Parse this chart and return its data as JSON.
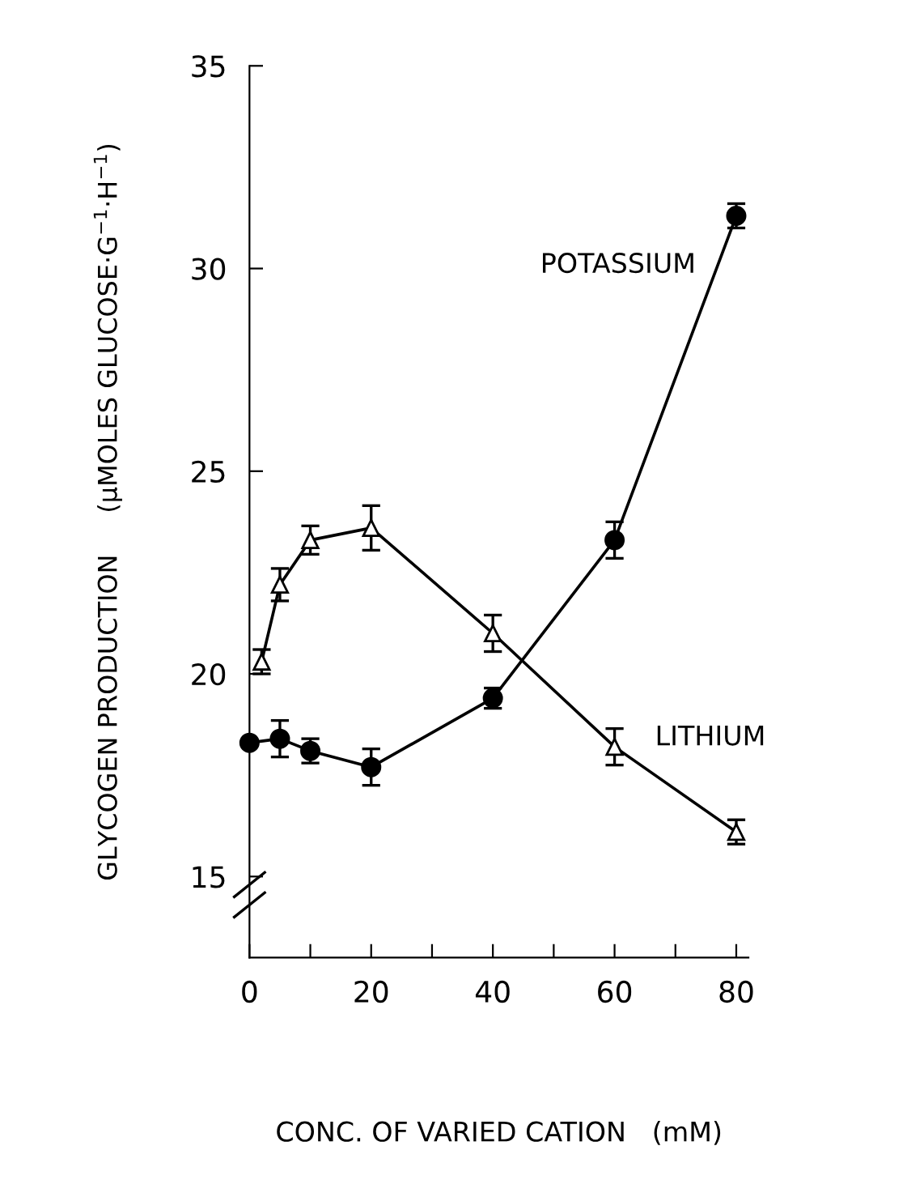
{
  "chart_data": {
    "type": "line",
    "xlabel": "CONC. OF VARIED CATION   (mM)",
    "ylabel": "GLYCOGEN PRODUCTION     (μMOLES GLUCOSE·G$^{−1}$·H$^{−1}$)",
    "series": [
      {
        "name": "POTASSIUM",
        "color": "#000000",
        "marker": "circle",
        "x": [
          0,
          5,
          10,
          20,
          40,
          60,
          80
        ],
        "values": [
          18.3,
          18.4,
          18.1,
          17.7,
          19.4,
          23.3,
          31.3
        ],
        "errors": [
          null,
          0.45,
          0.3,
          0.45,
          0.25,
          0.45,
          0.3
        ]
      },
      {
        "name": "LITHIUM",
        "color": "#000000",
        "marker": "triangle",
        "x": [
          2,
          5,
          10,
          20,
          40,
          60,
          80
        ],
        "values": [
          20.3,
          22.2,
          23.3,
          23.6,
          21.0,
          18.2,
          16.1
        ],
        "errors": [
          0.3,
          0.4,
          0.35,
          0.55,
          0.45,
          0.45,
          0.3
        ]
      }
    ],
    "xlim": [
      0,
      82
    ],
    "ylim": [
      13,
      35
    ],
    "xticks": [
      0,
      {
        "value": 10,
        "label": null
      },
      20,
      {
        "value": 30,
        "label": null
      },
      40,
      {
        "value": 50,
        "label": null
      },
      60,
      {
        "value": 70,
        "label": null
      },
      80
    ],
    "yticks": [
      15,
      20,
      25,
      30,
      35
    ],
    "grid": false,
    "legend": false
  }
}
